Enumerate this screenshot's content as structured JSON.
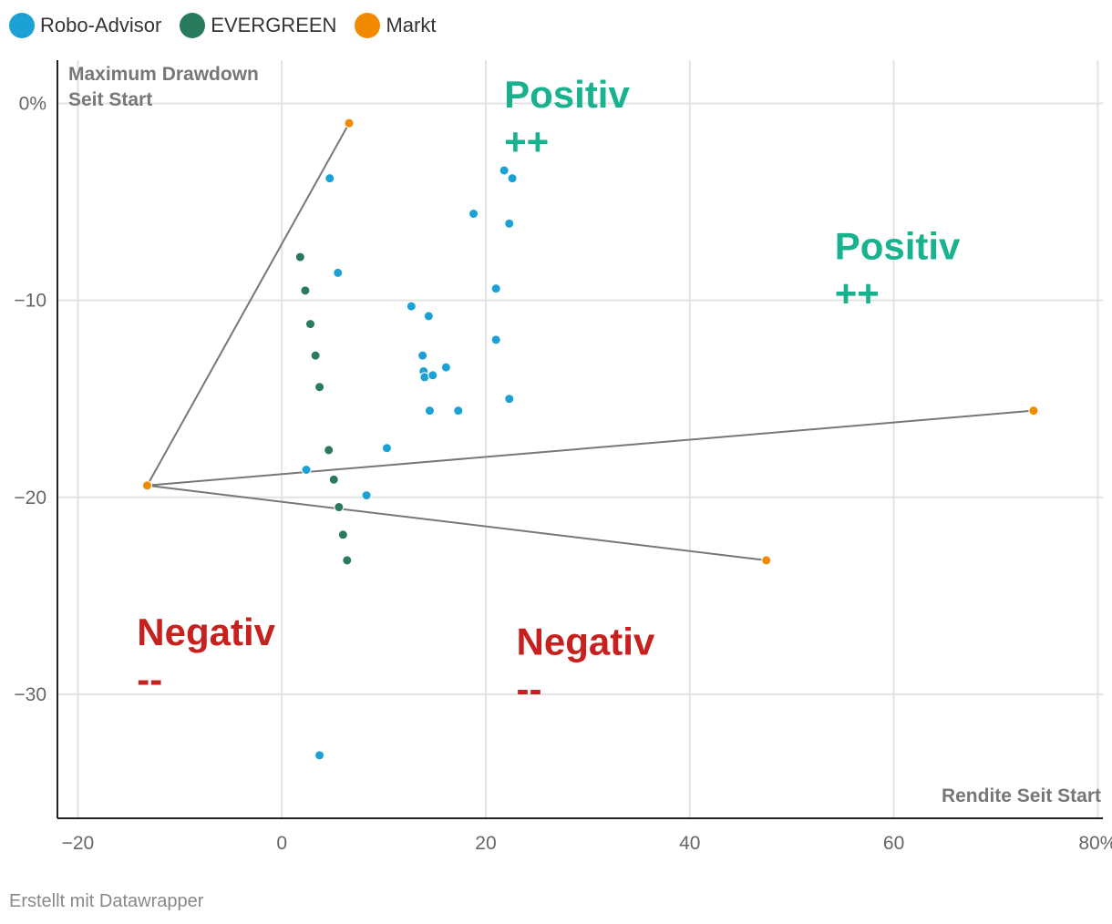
{
  "chart_data": {
    "type": "scatter",
    "title": "",
    "xlabel": "Rendite Seit Start",
    "ylabel_lines": [
      "Maximum Drawdown",
      "Seit Start"
    ],
    "xlim": [
      -22,
      80.5
    ],
    "ylim": [
      -36.3,
      2.2
    ],
    "x_ticks": [
      -20,
      0,
      20,
      40,
      60,
      80
    ],
    "x_tick_labels": [
      "−20",
      "0",
      "20",
      "40",
      "60",
      "80%"
    ],
    "y_ticks": [
      0,
      -10,
      -20,
      -30
    ],
    "y_tick_labels": [
      "0%",
      "−10",
      "−20",
      "−30"
    ],
    "grid": true,
    "series": [
      {
        "name": "Robo-Advisor",
        "color": "#1ba1d4",
        "points": [
          [
            4.7,
            -3.8
          ],
          [
            21.8,
            -3.4
          ],
          [
            22.6,
            -3.8
          ],
          [
            18.8,
            -5.6
          ],
          [
            22.3,
            -6.1
          ],
          [
            5.5,
            -8.6
          ],
          [
            21.0,
            -9.4
          ],
          [
            12.7,
            -10.3
          ],
          [
            14.4,
            -10.8
          ],
          [
            21.0,
            -12.0
          ],
          [
            13.8,
            -12.8
          ],
          [
            16.1,
            -13.4
          ],
          [
            13.9,
            -13.6
          ],
          [
            14.0,
            -13.9
          ],
          [
            14.8,
            -13.8
          ],
          [
            22.3,
            -15.0
          ],
          [
            14.5,
            -15.6
          ],
          [
            17.3,
            -15.6
          ],
          [
            10.3,
            -17.5
          ],
          [
            2.4,
            -18.6
          ],
          [
            8.3,
            -19.9
          ],
          [
            3.7,
            -33.1
          ]
        ]
      },
      {
        "name": "EVERGREEN",
        "color": "#2a7a5e",
        "points": [
          [
            1.8,
            -7.8
          ],
          [
            2.3,
            -9.5
          ],
          [
            2.8,
            -11.2
          ],
          [
            3.3,
            -12.8
          ],
          [
            3.7,
            -14.4
          ],
          [
            4.6,
            -17.6
          ],
          [
            5.1,
            -19.1
          ],
          [
            5.6,
            -20.5
          ],
          [
            6.0,
            -21.9
          ],
          [
            6.4,
            -23.2
          ]
        ]
      },
      {
        "name": "Markt",
        "color": "#f28a00",
        "points": [
          [
            -13.2,
            -19.4
          ],
          [
            6.6,
            -1.0
          ],
          [
            73.7,
            -15.6
          ],
          [
            47.5,
            -23.2
          ]
        ]
      }
    ],
    "connector_lines": [
      {
        "from": [
          -13.2,
          -19.4
        ],
        "to": [
          6.6,
          -1.0
        ]
      },
      {
        "from": [
          -13.2,
          -19.4
        ],
        "to": [
          73.7,
          -15.6
        ]
      },
      {
        "from": [
          -13.2,
          -19.4
        ],
        "to": [
          47.5,
          -23.2
        ]
      }
    ],
    "annotations": [
      {
        "line1": "Positiv",
        "line2": "++",
        "x": 21.8,
        "y": -0.2,
        "color": "#18b38e"
      },
      {
        "line1": "Positiv",
        "line2": "++",
        "x": 54.2,
        "y": -7.9,
        "color": "#18b38e"
      },
      {
        "line1": "Negativ",
        "line2": "--",
        "x": -14.2,
        "y": -27.5,
        "color": "#c6201f"
      },
      {
        "line1": "Negativ",
        "line2": "--",
        "x": 23.0,
        "y": -28.0,
        "color": "#c6201f"
      }
    ]
  },
  "footer": "Erstellt mit Datawrapper"
}
